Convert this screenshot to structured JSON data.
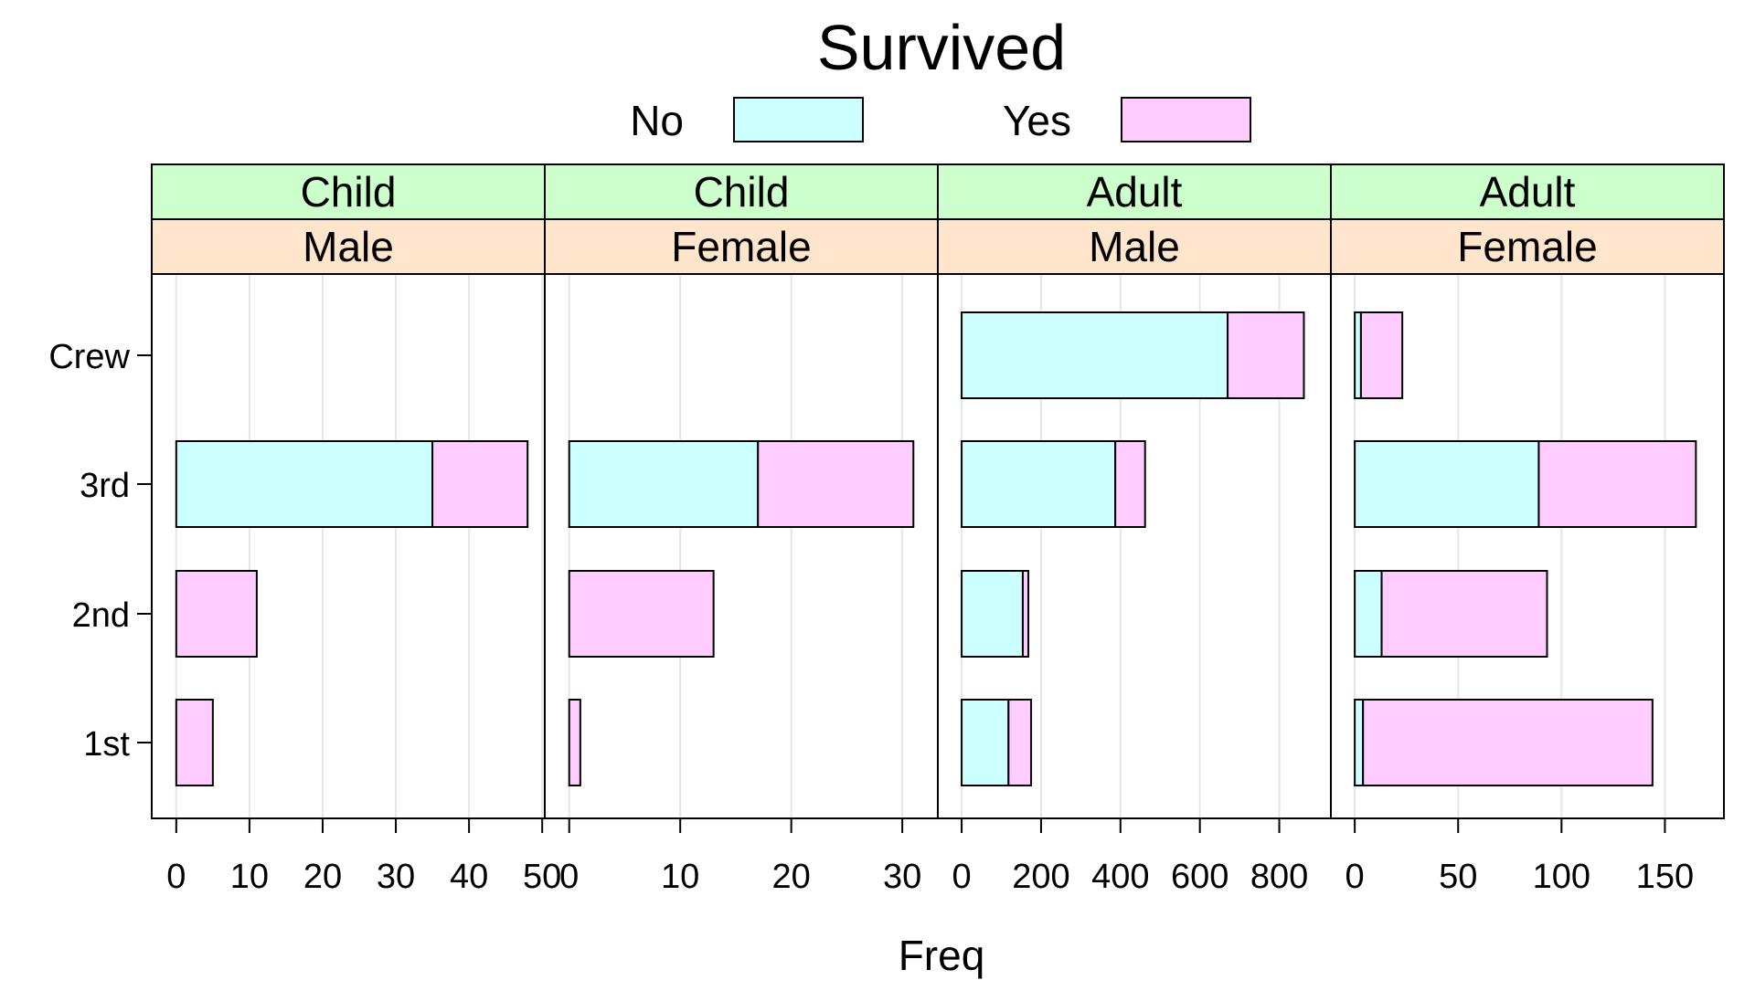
{
  "chart_data": {
    "type": "bar",
    "orientation": "horizontal",
    "stacked": true,
    "title": "Survived",
    "xlabel": "Freq",
    "ylabel": "",
    "grid": true,
    "legend": {
      "placement": "top",
      "entries": [
        {
          "name": "No",
          "color": "#ccffff"
        },
        {
          "name": "Yes",
          "color": "#ffccff"
        }
      ]
    },
    "categories": [
      "1st",
      "2nd",
      "3rd",
      "Crew"
    ],
    "strip_colors": {
      "age": "#ccffcc",
      "sex": "#ffe5cc"
    },
    "panels": [
      {
        "age": "Child",
        "sex": "Male",
        "xlim": [
          -3.35,
          50.35
        ],
        "ticks": [
          0,
          10,
          20,
          30,
          40,
          50
        ],
        "series": [
          {
            "name": "No",
            "values": [
              0,
              0,
              35,
              0
            ]
          },
          {
            "name": "Yes",
            "values": [
              5,
              11,
              13,
              0
            ]
          }
        ]
      },
      {
        "age": "Child",
        "sex": "Female",
        "xlim": [
          -2.2,
          33.2
        ],
        "ticks": [
          0,
          10,
          20,
          30
        ],
        "series": [
          {
            "name": "No",
            "values": [
              0,
              0,
              17,
              0
            ]
          },
          {
            "name": "Yes",
            "values": [
              1,
              13,
              14,
              0
            ]
          }
        ]
      },
      {
        "age": "Adult",
        "sex": "Male",
        "xlim": [
          -60,
          930
        ],
        "ticks": [
          0,
          200,
          400,
          600,
          800
        ],
        "series": [
          {
            "name": "No",
            "values": [
              118,
              154,
              387,
              670
            ]
          },
          {
            "name": "Yes",
            "values": [
              57,
              14,
              75,
              192
            ]
          }
        ]
      },
      {
        "age": "Adult",
        "sex": "Female",
        "xlim": [
          -11.55,
          178.55
        ],
        "ticks": [
          0,
          50,
          100,
          150
        ],
        "series": [
          {
            "name": "No",
            "values": [
              4,
              13,
              89,
              3
            ]
          },
          {
            "name": "Yes",
            "values": [
              140,
              80,
              76,
              20
            ]
          }
        ]
      }
    ]
  }
}
